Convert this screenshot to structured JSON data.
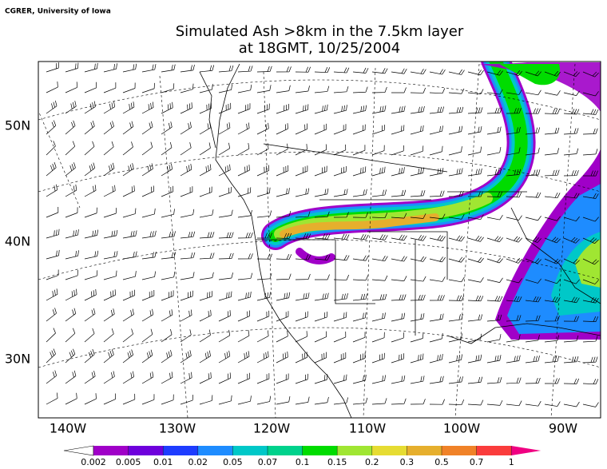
{
  "credit": "CGRER, University of Iowa",
  "title": [
    "Simulated Ash >8km in the 7.5km layer",
    "at 18GMT, 10/25/2004"
  ],
  "map": {
    "lon_labels": [
      "140W",
      "130W",
      "120W",
      "110W",
      "100W",
      "90W"
    ],
    "lat_labels": [
      "50N",
      "40N",
      "30N"
    ]
  },
  "colorbar": {
    "levels": [
      0.002,
      0.005,
      0.01,
      0.02,
      0.05,
      0.07,
      0.1,
      0.15,
      0.2,
      0.3,
      0.5,
      0.7,
      1
    ],
    "colors": [
      "#ffffff",
      "#a000c8",
      "#6e00dc",
      "#1e3cff",
      "#1e8cff",
      "#00c8c8",
      "#00d28c",
      "#00dc00",
      "#a0e632",
      "#e6dc32",
      "#e6af2d",
      "#f08228",
      "#fa3c3c",
      "#f00082"
    ]
  }
}
